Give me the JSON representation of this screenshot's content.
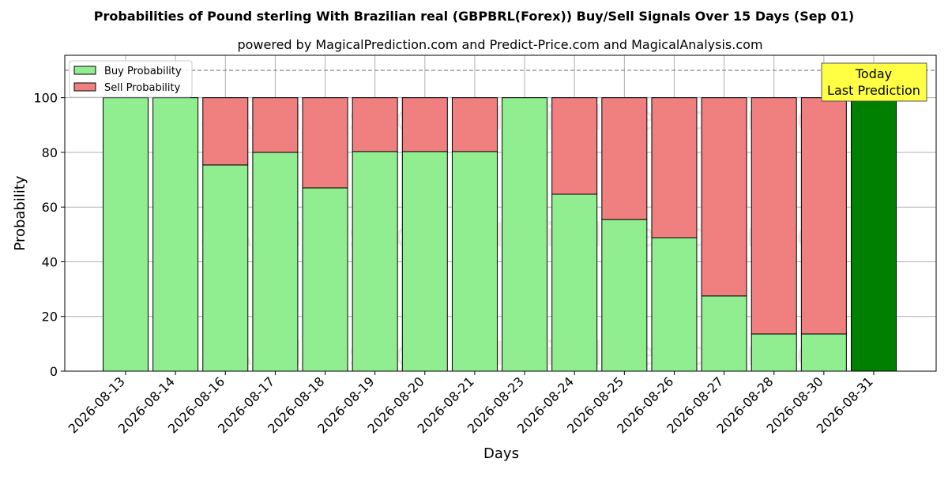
{
  "chart_data": {
    "type": "bar",
    "stacked": true,
    "title": "Probabilities of Pound sterling With Brazilian real (GBPBRL(Forex)) Buy/Sell Signals Over 15 Days (Sep 01)",
    "subtitle": "powered by MagicalPrediction.com and Predict-Price.com and MagicalAnalysis.com",
    "xlabel": "Days",
    "ylabel": "Probability",
    "ylim": [
      0,
      115.5
    ],
    "yticks": [
      0,
      20,
      40,
      60,
      80,
      100
    ],
    "grid": true,
    "legend_position": "top-left",
    "reference_line": 110,
    "categories": [
      "2026-08-13",
      "2026-08-14",
      "2026-08-16",
      "2026-08-17",
      "2026-08-18",
      "2026-08-19",
      "2026-08-20",
      "2026-08-21",
      "2026-08-23",
      "2026-08-24",
      "2026-08-25",
      "2026-08-26",
      "2026-08-27",
      "2026-08-28",
      "2026-08-30",
      "2026-08-31"
    ],
    "series": [
      {
        "name": "Buy Probability",
        "color": "#90ee90",
        "values": [
          100,
          100,
          75.4,
          80,
          67,
          80.3,
          80.3,
          80.3,
          100,
          64.7,
          55.5,
          48.8,
          27.5,
          13.6,
          13.6,
          100
        ]
      },
      {
        "name": "Sell Probability",
        "color": "#f08080",
        "values": [
          0,
          0,
          24.6,
          20,
          33,
          19.7,
          19.7,
          19.7,
          0,
          35.3,
          44.5,
          51.2,
          72.5,
          86.4,
          86.4,
          0
        ]
      }
    ],
    "highlight": {
      "index": 15,
      "color": "#008000"
    },
    "annotation": {
      "lines": [
        "Today",
        "Last Prediction"
      ],
      "background": "#ffff44"
    },
    "watermarks": [
      "MagicalAnalysis.com",
      "MagicalPrediction.com"
    ]
  }
}
